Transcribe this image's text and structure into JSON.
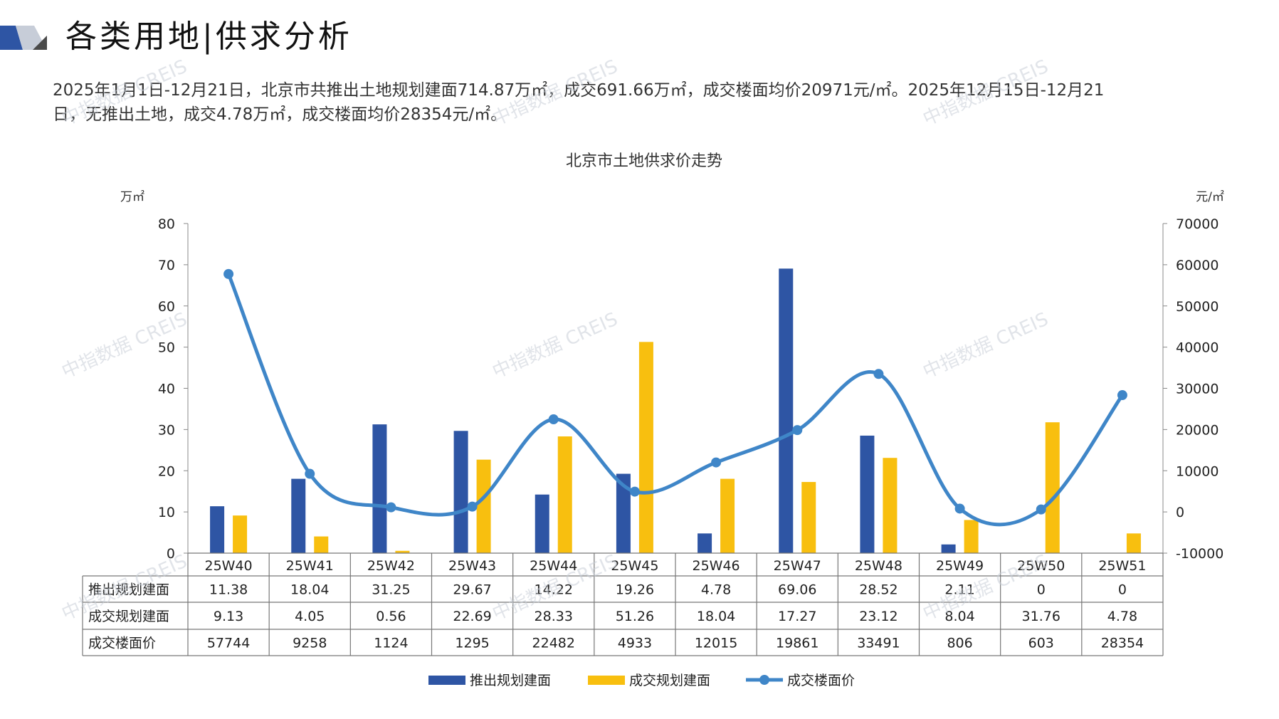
{
  "header": {
    "title": "各类用地|供求分析"
  },
  "summary": {
    "line1": "2025年1月1日-12月21日，北京市共推出土地规划建面714.87万㎡，成交691.66万㎡，成交楼面均价20971元/㎡。2025年12月15日-12月21",
    "line2": "日，无推出土地，成交4.78万㎡，成交楼面均价28354元/㎡。"
  },
  "watermark_text": "中指数据 CREIS",
  "colors": {
    "supply": "#2e55a4",
    "deal": "#f8bf0f",
    "price": "#3f86c8"
  },
  "chart_data": {
    "type": "bar+line",
    "title": "北京市土地供求价走势",
    "y_left_unit": "万㎡",
    "y_right_unit": "元/㎡",
    "y_left_range": [
      0,
      80
    ],
    "y_left_ticks": [
      0,
      10,
      20,
      30,
      40,
      50,
      60,
      70,
      80
    ],
    "y_right_range": [
      -10000,
      70000
    ],
    "y_right_ticks": [
      -10000,
      0,
      10000,
      20000,
      30000,
      40000,
      50000,
      60000,
      70000
    ],
    "categories": [
      "25W40",
      "25W41",
      "25W42",
      "25W43",
      "25W44",
      "25W45",
      "25W46",
      "25W47",
      "25W48",
      "25W49",
      "25W50",
      "25W51"
    ],
    "series": [
      {
        "name": "推出规划建面",
        "type": "bar",
        "axis": "left",
        "values": [
          11.38,
          18.04,
          31.25,
          29.67,
          14.22,
          19.26,
          4.78,
          69.06,
          28.52,
          2.11,
          0,
          0
        ],
        "labels": [
          "11.38",
          "18.04",
          "31.25",
          "29.67",
          "14.22",
          "19.26",
          "4.78",
          "69.06",
          "28.52",
          "2.11",
          "0",
          "0"
        ]
      },
      {
        "name": "成交规划建面",
        "type": "bar",
        "axis": "left",
        "values": [
          9.13,
          4.05,
          0.56,
          22.69,
          28.33,
          51.26,
          18.04,
          17.27,
          23.12,
          8.04,
          31.76,
          4.78
        ],
        "labels": [
          "9.13",
          "4.05",
          "0.56",
          "22.69",
          "28.33",
          "51.26",
          "18.04",
          "17.27",
          "23.12",
          "8.04",
          "31.76",
          "4.78"
        ]
      },
      {
        "name": "成交楼面价",
        "type": "line",
        "axis": "right",
        "values": [
          57744,
          9258,
          1124,
          1295,
          22482,
          4933,
          12015,
          19861,
          33491,
          806,
          603,
          28354
        ],
        "labels": [
          "57744",
          "9258",
          "1124",
          "1295",
          "22482",
          "4933",
          "12015",
          "19861",
          "33491",
          "806",
          "603",
          "28354"
        ]
      }
    ],
    "legend_position": "bottom"
  }
}
